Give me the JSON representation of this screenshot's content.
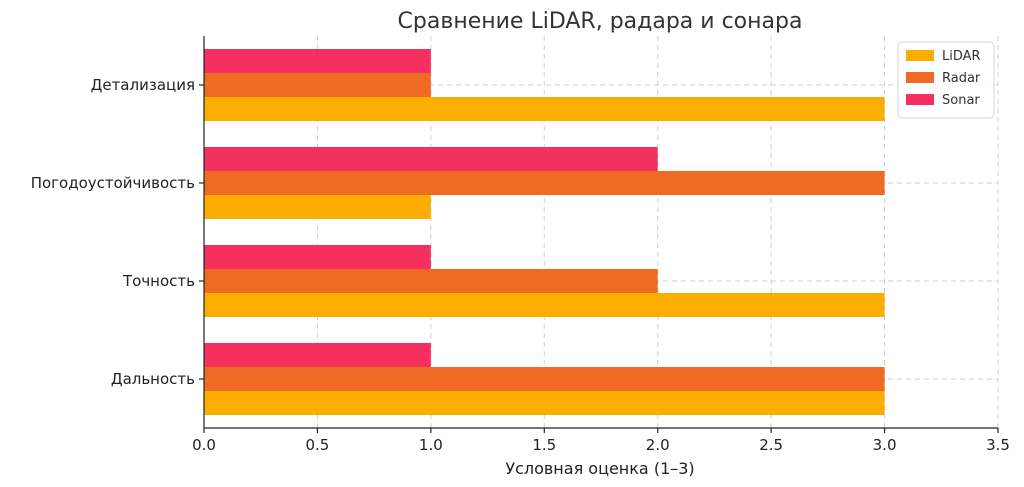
{
  "chart_data": {
    "type": "bar",
    "orientation": "horizontal",
    "title": "Сравнение LiDAR, радара и сонара",
    "xlabel": "Условная оценка (1–3)",
    "ylabel": "",
    "xlim": [
      0,
      3.5
    ],
    "x_ticks": [
      "0.0",
      "0.5",
      "1.0",
      "1.5",
      "2.0",
      "2.5",
      "3.0",
      "3.5"
    ],
    "categories": [
      "Дальность",
      "Точность",
      "Погодоустойчивость",
      "Детализация"
    ],
    "series": [
      {
        "name": "LiDAR",
        "color": "#fbad00",
        "values": [
          3,
          3,
          1,
          3
        ]
      },
      {
        "name": "Radar",
        "color": "#ef6a22",
        "values": [
          3,
          2,
          3,
          1
        ]
      },
      {
        "name": "Sonar",
        "color": "#f5305e",
        "values": [
          1,
          1,
          2,
          1
        ]
      }
    ],
    "grid": true,
    "legend_position": "top-right"
  }
}
